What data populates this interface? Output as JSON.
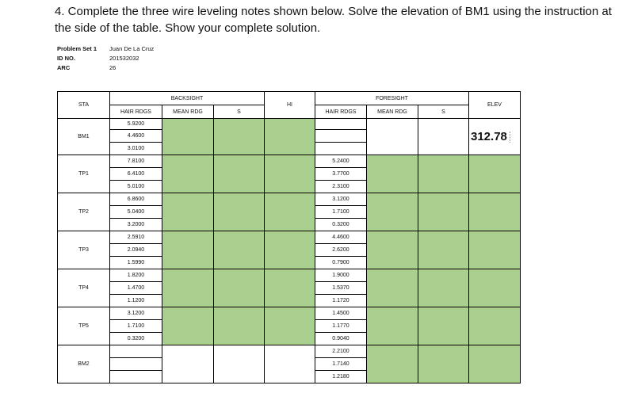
{
  "instruction": "4. Complete the three wire leveling notes shown below. Solve the elevation of BM1 using the instruction at the side of the table. Show your complete solution.",
  "info": [
    {
      "label": "Problem Set 1",
      "value": "Juan De La Cruz"
    },
    {
      "label": "ID NO.",
      "value": "201532032"
    },
    {
      "label": "ARC",
      "value": "26"
    }
  ],
  "headers": {
    "sta": "STA",
    "backsight": "BACKSIGHT",
    "hi": "HI",
    "foresight": "FORESIGHT",
    "elev": "ELEV",
    "bs_hair": "HAIR RDGS",
    "bs_mean": "MEAN RDG",
    "bs_s": "S",
    "fs_hair": "HAIR RDGS",
    "fs_mean": "MEAN RDG",
    "fs_s": "S"
  },
  "stations": [
    {
      "sta": "BM1",
      "bs": [
        "5.9200",
        "4.4600",
        "3.0100"
      ],
      "fs": [
        "",
        "",
        ""
      ],
      "elev": "312.78"
    },
    {
      "sta": "TP1",
      "bs": [
        "7.8100",
        "6.4100",
        "5.0100"
      ],
      "fs": [
        "5.2400",
        "3.7700",
        "2.3100"
      ],
      "elev": ""
    },
    {
      "sta": "TP2",
      "bs": [
        "6.8600",
        "5.0400",
        "3.2000"
      ],
      "fs": [
        "3.1200",
        "1.7100",
        "0.3200"
      ],
      "elev": ""
    },
    {
      "sta": "TP3",
      "bs": [
        "2.5910",
        "2.0940",
        "1.5990"
      ],
      "fs": [
        "4.4600",
        "2.6200",
        "0.7900"
      ],
      "elev": ""
    },
    {
      "sta": "TP4",
      "bs": [
        "1.8200",
        "1.4700",
        "1.1200"
      ],
      "fs": [
        "1.9000",
        "1.5370",
        "1.1720"
      ],
      "elev": ""
    },
    {
      "sta": "TP5",
      "bs": [
        "3.1200",
        "1.7100",
        "0.3200"
      ],
      "fs": [
        "1.4500",
        "1.1770",
        "0.9040"
      ],
      "elev": ""
    },
    {
      "sta": "BM2",
      "bs": [
        "",
        "",
        ""
      ],
      "fs": [
        "2.2100",
        "1.7140",
        "1.2180"
      ],
      "elev": ""
    }
  ],
  "colors": {
    "input_fill": "#a9d08e"
  }
}
